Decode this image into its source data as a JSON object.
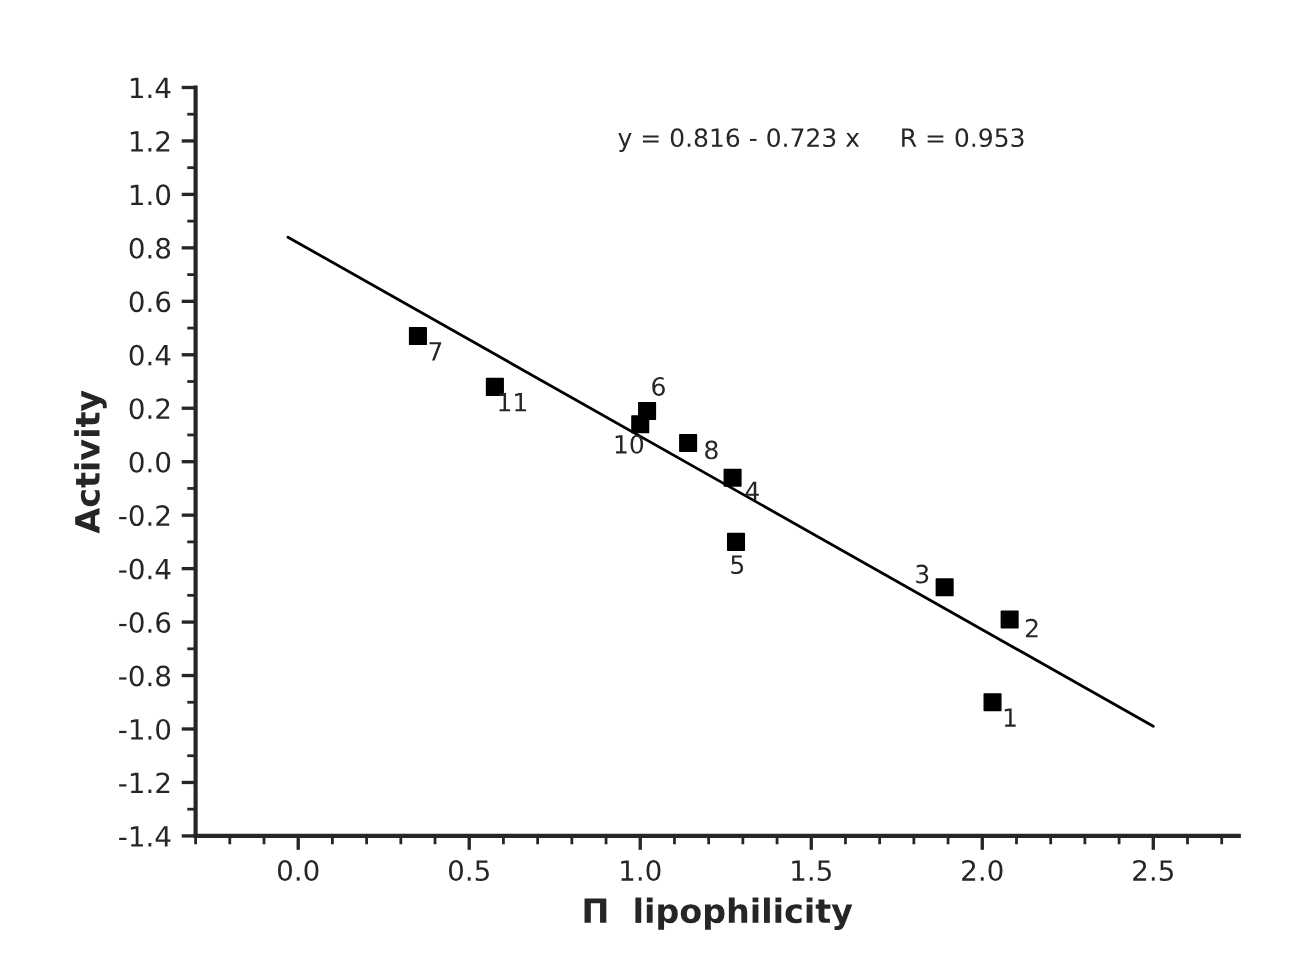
{
  "chart_data": {
    "type": "scatter",
    "xlabel": "Π  lipophilicity",
    "ylabel": "Activity",
    "annotations": [
      "y = 0.816 - 0.723 x     R = 0.953",
      {
        "text": "1",
        "x": 2.03,
        "y": -0.9
      },
      {
        "text": "2",
        "x": 2.08,
        "y": -0.59
      },
      {
        "text": "3",
        "x": 1.89,
        "y": -0.47
      },
      {
        "text": "4",
        "x": 1.27,
        "y": -0.06
      },
      {
        "text": "5",
        "x": 1.28,
        "y": -0.3
      },
      {
        "text": "6",
        "x": 1.02,
        "y": 0.19
      },
      {
        "text": "7",
        "x": 0.35,
        "y": 0.47
      },
      {
        "text": "8",
        "x": 1.14,
        "y": 0.07
      },
      {
        "text": "10",
        "x": 1.0,
        "y": 0.14
      },
      {
        "text": "11",
        "x": 0.575,
        "y": 0.28
      }
    ],
    "series": [
      {
        "color": "#000000",
        "marker": "square",
        "x": [
          2.03,
          2.08,
          1.89,
          1.27,
          1.28,
          1.02,
          0.35,
          1.14,
          1.0,
          0.575
        ],
        "values": [
          -0.9,
          -0.59,
          -0.47,
          -0.06,
          -0.3,
          0.19,
          0.47,
          0.07,
          0.14,
          0.28
        ]
      },
      {
        "type": "line",
        "color": "#000000",
        "marker": "none",
        "line_style": "solid",
        "x": [
          -0.03,
          2.5
        ],
        "values": [
          0.84,
          -0.99
        ]
      }
    ],
    "xlim": [
      -0.3,
      2.75
    ],
    "ylim": [
      -1.4,
      1.4
    ],
    "xticks": [
      {
        "value": 0.0,
        "label": "0.0"
      },
      0.5,
      {
        "value": 1.0,
        "label": "1.0"
      },
      1.5,
      {
        "value": 2.0,
        "label": "2.0"
      },
      2.5
    ],
    "yticks": [
      {
        "value": -1.4,
        "label": "-1.4"
      },
      {
        "value": -1.2,
        "label": "-1.2"
      },
      {
        "value": -1.0,
        "label": "-1.0"
      },
      {
        "value": -0.8,
        "label": "-0.8"
      },
      {
        "value": -0.6,
        "label": "-0.6"
      },
      {
        "value": -0.4,
        "label": "-0.4"
      },
      {
        "value": -0.2,
        "label": "-0.2"
      },
      {
        "value": 0.0,
        "label": "0.0"
      },
      0.2,
      0.4,
      0.6,
      0.8,
      {
        "value": 1.0,
        "label": "1.0"
      },
      1.2,
      1.4
    ],
    "grid": false,
    "legend": false
  }
}
